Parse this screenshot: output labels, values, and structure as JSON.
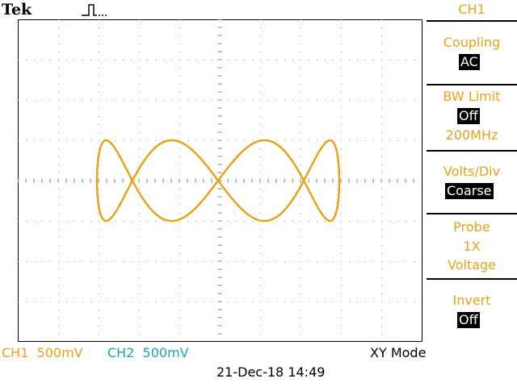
{
  "header": {
    "brand": "Tek",
    "trigger_icon": "pulse-trigger-icon"
  },
  "menu": {
    "title": "CH1",
    "coupling": {
      "label": "Coupling",
      "value": "AC"
    },
    "bw_limit": {
      "label": "BW Limit",
      "value": "Off",
      "sub": "200MHz"
    },
    "volts_div": {
      "label": "Volts/Div",
      "value": "Coarse"
    },
    "probe": {
      "label": "Probe",
      "line1": "1X",
      "line2": "Voltage"
    },
    "invert": {
      "label": "Invert",
      "value": "Off"
    }
  },
  "status": {
    "ch1": "CH1  500mV",
    "ch2": "CH2  500mV",
    "mode": "XY Mode",
    "datetime": "21-Dec-18 14:49"
  },
  "colors": {
    "ch1": "#e8a317",
    "ch2": "#1aa6b7",
    "grid": "#9a9a9a"
  }
}
